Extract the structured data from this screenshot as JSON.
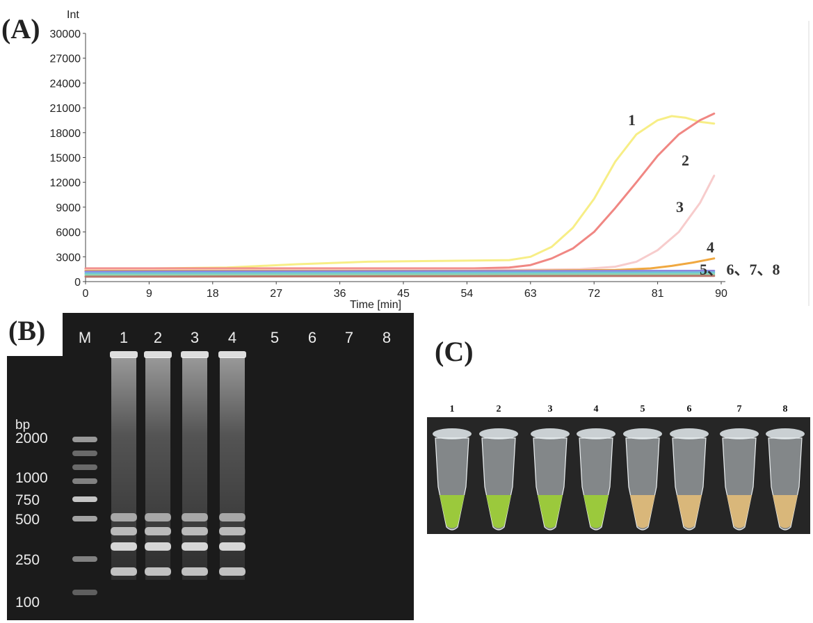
{
  "panels": {
    "a_label": "(A)",
    "b_label": "(B)",
    "c_label": "(C)"
  },
  "chart_data": {
    "type": "line",
    "xlabel": "Time  [min]",
    "ylabel": "Int",
    "xlim": [
      0,
      90
    ],
    "ylim": [
      0,
      30000
    ],
    "x_ticks": [
      0,
      9,
      18,
      27,
      36,
      45,
      54,
      63,
      72,
      81,
      90
    ],
    "y_ticks": [
      0,
      3000,
      6000,
      9000,
      12000,
      15000,
      18000,
      21000,
      24000,
      27000,
      30000
    ],
    "grid": false,
    "series": [
      {
        "name": "1",
        "color": "#f7ee86",
        "x": [
          0,
          20,
          30,
          40,
          50,
          60,
          63,
          66,
          69,
          72,
          75,
          78,
          81,
          83,
          85,
          87,
          89
        ],
        "y": [
          1500,
          1700,
          2100,
          2400,
          2500,
          2600,
          3000,
          4200,
          6500,
          10000,
          14500,
          17800,
          19500,
          20000,
          19800,
          19300,
          19100
        ]
      },
      {
        "name": "2",
        "color": "#f08783",
        "x": [
          0,
          30,
          55,
          60,
          63,
          66,
          69,
          72,
          75,
          78,
          81,
          84,
          87,
          89
        ],
        "y": [
          1600,
          1600,
          1600,
          1700,
          2000,
          2800,
          4000,
          6000,
          8900,
          12000,
          15200,
          17800,
          19500,
          20300
        ]
      },
      {
        "name": "3",
        "color": "#f7cccc",
        "x": [
          0,
          60,
          70,
          75,
          78,
          81,
          84,
          87,
          89
        ],
        "y": [
          1400,
          1400,
          1500,
          1800,
          2400,
          3800,
          6000,
          9500,
          12800
        ]
      },
      {
        "name": "4",
        "color": "#f0a840",
        "x": [
          0,
          60,
          75,
          80,
          83,
          86,
          89
        ],
        "y": [
          1300,
          1300,
          1400,
          1600,
          1900,
          2300,
          2800
        ]
      },
      {
        "name": "5",
        "color": "#8c86e0",
        "x": [
          0,
          89
        ],
        "y": [
          1200,
          1300
        ]
      },
      {
        "name": "6",
        "color": "#70c4d8",
        "x": [
          0,
          89
        ],
        "y": [
          1000,
          1100
        ]
      },
      {
        "name": "7",
        "color": "#8dd5b0",
        "x": [
          0,
          89
        ],
        "y": [
          800,
          900
        ]
      },
      {
        "name": "8",
        "color": "#b8766a",
        "x": [
          0,
          89
        ],
        "y": [
          600,
          700
        ]
      }
    ],
    "curve_labels": [
      "1",
      "2",
      "3",
      "4",
      "5、 6、7、8"
    ]
  },
  "gel": {
    "marker_label": "M",
    "lane_labels": [
      "1",
      "2",
      "3",
      "4",
      "5",
      "6",
      "7",
      "8"
    ],
    "unit": "bp",
    "ladder": [
      "2000",
      "1000",
      "750",
      "500",
      "250",
      "100"
    ]
  },
  "tubes": {
    "labels": [
      "1",
      "2",
      "3",
      "4",
      "5",
      "6",
      "7",
      "8"
    ],
    "colors": [
      "green",
      "green",
      "green",
      "green",
      "orange",
      "orange",
      "orange",
      "orange"
    ],
    "color_hex": {
      "green": "#9bc93c",
      "orange": "#d9b77a"
    }
  }
}
